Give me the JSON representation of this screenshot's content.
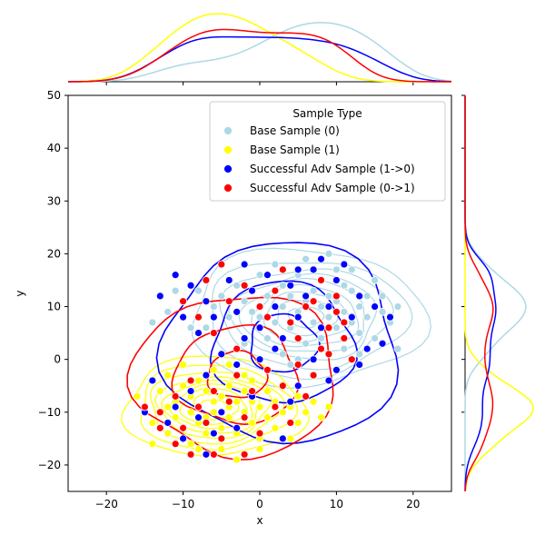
{
  "chart_data": {
    "type": "scatter",
    "title": "",
    "xlabel": "x",
    "ylabel": "y",
    "xlim": [
      -25,
      25
    ],
    "ylim": [
      -25,
      50
    ],
    "xticks": [
      -20,
      -10,
      0,
      10,
      20
    ],
    "yticks": [
      -20,
      -10,
      0,
      10,
      20,
      30,
      40,
      50
    ],
    "grid": false,
    "legend": {
      "title": "Sample Type",
      "placement": "upper right"
    },
    "marginals": {
      "top": "kde of x per series",
      "right": "kde of y per series"
    },
    "series": [
      {
        "name": "Base Sample (0)",
        "color": "#add8e6",
        "center": [
          6,
          8
        ],
        "spread": [
          6.5,
          5.5
        ],
        "points": [
          [
            -14,
            7
          ],
          [
            -12,
            9
          ],
          [
            -10,
            11
          ],
          [
            -9,
            6
          ],
          [
            -8,
            13
          ],
          [
            -6,
            10
          ],
          [
            -5,
            12
          ],
          [
            -4,
            8
          ],
          [
            -3,
            14
          ],
          [
            -2,
            11
          ],
          [
            -1,
            9
          ],
          [
            0,
            16
          ],
          [
            1,
            12
          ],
          [
            2,
            7
          ],
          [
            2,
            18
          ],
          [
            3,
            10
          ],
          [
            3,
            14
          ],
          [
            4,
            6
          ],
          [
            4,
            12
          ],
          [
            5,
            16
          ],
          [
            5,
            9
          ],
          [
            6,
            11
          ],
          [
            6,
            3
          ],
          [
            6,
            19
          ],
          [
            7,
            7
          ],
          [
            7,
            13
          ],
          [
            8,
            10
          ],
          [
            8,
            15
          ],
          [
            8,
            4
          ],
          [
            9,
            12
          ],
          [
            9,
            8
          ],
          [
            10,
            17
          ],
          [
            10,
            6
          ],
          [
            10,
            11
          ],
          [
            11,
            14
          ],
          [
            11,
            2
          ],
          [
            11,
            9
          ],
          [
            12,
            13
          ],
          [
            12,
            7
          ],
          [
            13,
            10
          ],
          [
            13,
            5
          ],
          [
            14,
            12
          ],
          [
            14,
            8
          ],
          [
            15,
            15
          ],
          [
            15,
            4
          ],
          [
            16,
            9
          ],
          [
            17,
            7
          ],
          [
            18,
            2
          ],
          [
            18,
            10
          ],
          [
            1,
            4
          ],
          [
            -2,
            3
          ],
          [
            0,
            8
          ],
          [
            3,
            1
          ],
          [
            5,
            0
          ],
          [
            7,
            17
          ],
          [
            9,
            20
          ],
          [
            12,
            17
          ],
          [
            -7,
            6
          ],
          [
            -11,
            13
          ],
          [
            4,
            -1
          ],
          [
            13,
            1
          ],
          [
            16,
            12
          ]
        ]
      },
      {
        "name": "Base Sample (1)",
        "color": "#ffff00",
        "center": [
          -6,
          -9
        ],
        "spread": [
          5,
          4
        ],
        "points": [
          [
            -16,
            -7
          ],
          [
            -15,
            -10
          ],
          [
            -14,
            -12
          ],
          [
            -13,
            -6
          ],
          [
            -12,
            -9
          ],
          [
            -12,
            -14
          ],
          [
            -11,
            -8
          ],
          [
            -11,
            -11
          ],
          [
            -10,
            -5
          ],
          [
            -10,
            -13
          ],
          [
            -9,
            -7
          ],
          [
            -9,
            -10
          ],
          [
            -9,
            -16
          ],
          [
            -8,
            -9
          ],
          [
            -8,
            -4
          ],
          [
            -8,
            -12
          ],
          [
            -7,
            -6
          ],
          [
            -7,
            -11
          ],
          [
            -7,
            -14
          ],
          [
            -6,
            -8
          ],
          [
            -6,
            -10
          ],
          [
            -6,
            -2
          ],
          [
            -5,
            -13
          ],
          [
            -5,
            -7
          ],
          [
            -5,
            -17
          ],
          [
            -4,
            -9
          ],
          [
            -4,
            -5
          ],
          [
            -4,
            -11
          ],
          [
            -3,
            -8
          ],
          [
            -3,
            -14
          ],
          [
            -2,
            -6
          ],
          [
            -2,
            -10
          ],
          [
            -2,
            -3
          ],
          [
            -1,
            -12
          ],
          [
            -1,
            -8
          ],
          [
            0,
            -9
          ],
          [
            0,
            -15
          ],
          [
            1,
            -6
          ],
          [
            1,
            -11
          ],
          [
            2,
            -8
          ],
          [
            2,
            -13
          ],
          [
            3,
            -10
          ],
          [
            3,
            -5
          ],
          [
            4,
            -9
          ],
          [
            5,
            -12
          ],
          [
            5,
            -7
          ],
          [
            6,
            -10
          ],
          [
            7,
            -8
          ],
          [
            8,
            -11
          ],
          [
            9,
            -9
          ],
          [
            -10,
            -1
          ],
          [
            -12,
            -3
          ],
          [
            -6,
            -18
          ],
          [
            -3,
            -19
          ],
          [
            0,
            -17
          ],
          [
            -8,
            -17
          ],
          [
            4,
            -15
          ],
          [
            -14,
            -16
          ],
          [
            -4,
            -1
          ],
          [
            -1,
            -4
          ]
        ]
      },
      {
        "name": "Successful Adv Sample (1->0)",
        "color": "#0000ff",
        "center": [
          3,
          3
        ],
        "spread": [
          8,
          10
        ],
        "points": [
          [
            -13,
            12
          ],
          [
            -11,
            16
          ],
          [
            -10,
            8
          ],
          [
            -9,
            14
          ],
          [
            -8,
            5
          ],
          [
            -7,
            11
          ],
          [
            -6,
            8
          ],
          [
            -4,
            15
          ],
          [
            -3,
            9
          ],
          [
            -2,
            18
          ],
          [
            -1,
            13
          ],
          [
            0,
            6
          ],
          [
            1,
            16
          ],
          [
            2,
            10
          ],
          [
            3,
            4
          ],
          [
            4,
            14
          ],
          [
            5,
            8
          ],
          [
            6,
            12
          ],
          [
            7,
            17
          ],
          [
            8,
            6
          ],
          [
            9,
            10
          ],
          [
            10,
            15
          ],
          [
            11,
            4
          ],
          [
            12,
            8
          ],
          [
            13,
            12
          ],
          [
            14,
            2
          ],
          [
            15,
            10
          ],
          [
            17,
            8
          ],
          [
            16,
            3
          ],
          [
            11,
            18
          ],
          [
            8,
            19
          ],
          [
            5,
            17
          ],
          [
            2,
            2
          ],
          [
            0,
            0
          ],
          [
            -3,
            -1
          ],
          [
            -5,
            1
          ],
          [
            -7,
            -3
          ],
          [
            -9,
            -6
          ],
          [
            -11,
            -9
          ],
          [
            -12,
            -12
          ],
          [
            -10,
            -15
          ],
          [
            -7,
            -18
          ],
          [
            -5,
            -10
          ],
          [
            -3,
            -13
          ],
          [
            -1,
            -7
          ],
          [
            1,
            -2
          ],
          [
            3,
            -15
          ],
          [
            5,
            -5
          ],
          [
            7,
            0
          ],
          [
            9,
            -4
          ],
          [
            -14,
            -4
          ],
          [
            -15,
            -10
          ],
          [
            -8,
            -11
          ],
          [
            -6,
            -14
          ],
          [
            10,
            -2
          ],
          [
            13,
            -1
          ],
          [
            -2,
            4
          ],
          [
            4,
            -8
          ]
        ]
      },
      {
        "name": "Successful Adv Sample (0->1)",
        "color": "#ff0000",
        "center": [
          -3,
          -3
        ],
        "spread": [
          7,
          8
        ],
        "points": [
          [
            -13,
            -10
          ],
          [
            -11,
            -7
          ],
          [
            -10,
            -13
          ],
          [
            -9,
            -4
          ],
          [
            -8,
            -9
          ],
          [
            -7,
            -12
          ],
          [
            -6,
            -6
          ],
          [
            -5,
            -15
          ],
          [
            -4,
            -8
          ],
          [
            -3,
            -3
          ],
          [
            -2,
            -11
          ],
          [
            -1,
            -6
          ],
          [
            0,
            -14
          ],
          [
            1,
            -2
          ],
          [
            2,
            -9
          ],
          [
            3,
            -5
          ],
          [
            4,
            -12
          ],
          [
            5,
            -1
          ],
          [
            6,
            -7
          ],
          [
            7,
            -3
          ],
          [
            8,
            2
          ],
          [
            9,
            6
          ],
          [
            10,
            9
          ],
          [
            11,
            4
          ],
          [
            12,
            0
          ],
          [
            10,
            12
          ],
          [
            8,
            15
          ],
          [
            6,
            10
          ],
          [
            4,
            7
          ],
          [
            2,
            13
          ],
          [
            0,
            10
          ],
          [
            -2,
            14
          ],
          [
            -4,
            11
          ],
          [
            -6,
            5
          ],
          [
            -8,
            8
          ],
          [
            -10,
            11
          ],
          [
            -7,
            15
          ],
          [
            -5,
            18
          ],
          [
            -3,
            2
          ],
          [
            1,
            8
          ],
          [
            3,
            17
          ],
          [
            5,
            4
          ],
          [
            7,
            11
          ],
          [
            9,
            1
          ],
          [
            11,
            7
          ],
          [
            -11,
            -16
          ],
          [
            -9,
            -18
          ],
          [
            -6,
            -18
          ],
          [
            -2,
            -18
          ],
          [
            -13,
            -13
          ],
          [
            -15,
            -9
          ]
        ]
      }
    ]
  }
}
